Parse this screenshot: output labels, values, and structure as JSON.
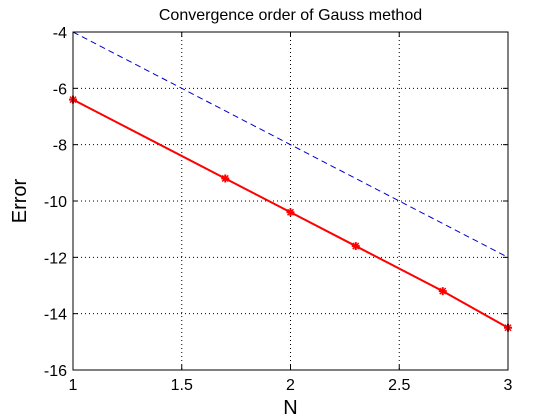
{
  "chart_data": {
    "type": "line",
    "title": "Convergence order of Gauss method",
    "xlabel": "N",
    "ylabel": "Error",
    "xlim": [
      1,
      3
    ],
    "ylim": [
      -16,
      -4
    ],
    "xticks": [
      1,
      1.5,
      2,
      2.5,
      3
    ],
    "yticks": [
      -16,
      -14,
      -12,
      -10,
      -8,
      -6,
      -4
    ],
    "xtick_labels": [
      "1",
      "1.5",
      "2",
      "2.5",
      "3"
    ],
    "ytick_labels": [
      "-16",
      "-14",
      "-12",
      "-10",
      "-8",
      "-6",
      "-4"
    ],
    "grid": true,
    "series": [
      {
        "style": "solid-with-markers",
        "color": "#ff0000",
        "marker": "star",
        "x": [
          1,
          1.7,
          2,
          2.3,
          2.7,
          3
        ],
        "y": [
          -6.4,
          -9.2,
          -10.4,
          -11.6,
          -13.2,
          -14.5
        ]
      },
      {
        "style": "dashed",
        "color": "#0000cc",
        "x": [
          1,
          3
        ],
        "y": [
          -4,
          -12
        ]
      }
    ]
  }
}
